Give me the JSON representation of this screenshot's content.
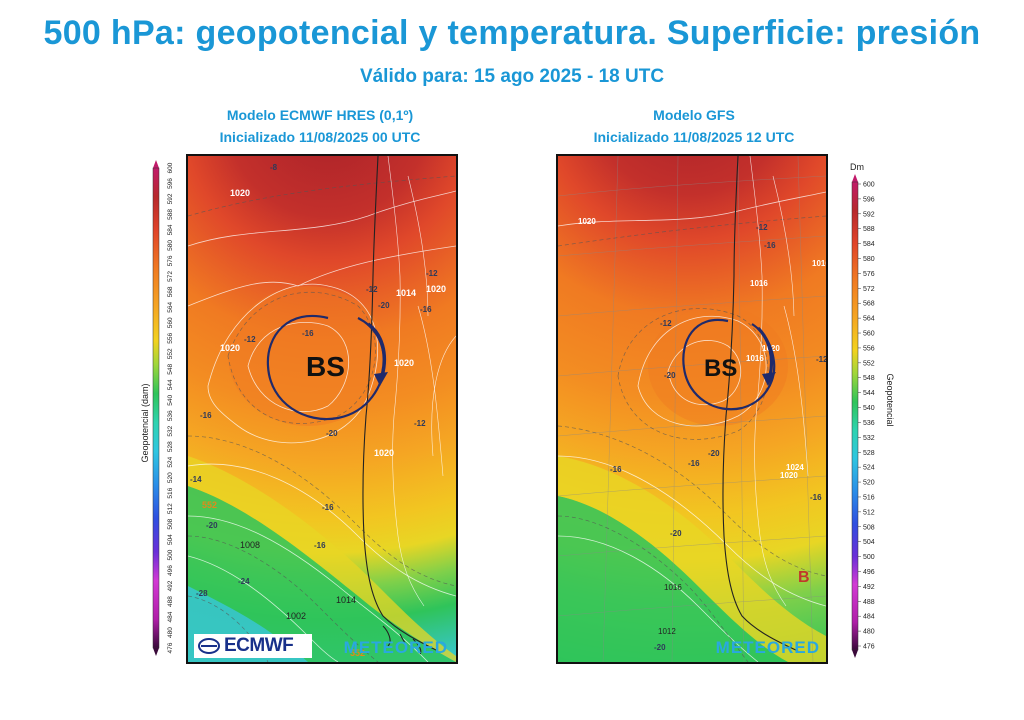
{
  "title": "500 hPa: geopotencial y temperatura. Superficie: presión",
  "subtitle": "Válido para: 15 ago 2025 - 18 UTC",
  "left_panel": {
    "model_line1": "Modelo ECMWF HRES (0,1º)",
    "model_line2": "Inicializado 11/08/2025 00 UTC",
    "bs_label": "BS",
    "logo_ecmwf": "ECMWF",
    "logo_meteored": "METEORED",
    "pressure_labels": [
      "1020",
      "1020",
      "1014",
      "1020",
      "1020",
      "1020",
      "1008",
      "1014",
      "1002"
    ],
    "temp_labels": [
      "-8",
      "-12",
      "-12",
      "-16",
      "-20",
      "-12",
      "-16",
      "-20",
      "-16",
      "-16",
      "-20",
      "-24",
      "-28",
      "-12",
      "-16",
      "-14"
    ],
    "height_labels": [
      "552",
      "552"
    ]
  },
  "right_panel": {
    "model_line1": "Modelo GFS",
    "model_line2": "Inicializado 11/08/2025 12 UTC",
    "bs_label": "BS",
    "b_label": "B",
    "logo_meteored": "METEORED",
    "pressure_labels": [
      "1020",
      "1020",
      "1016",
      "1016",
      "1020",
      "1024",
      "1016",
      "1012",
      "1016"
    ],
    "temp_labels": [
      "-12",
      "-12",
      "-16",
      "-12",
      "-20",
      "-16",
      "-16",
      "-20",
      "-20",
      "-20",
      "-16"
    ]
  },
  "left_colorbar": {
    "label": "Geopotencial (dam)",
    "ticks": [
      "476",
      "480",
      "484",
      "488",
      "492",
      "496",
      "500",
      "504",
      "508",
      "512",
      "516",
      "520",
      "524",
      "528",
      "532",
      "536",
      "540",
      "544",
      "548",
      "552",
      "556",
      "560",
      "564",
      "568",
      "572",
      "576",
      "580",
      "584",
      "588",
      "592",
      "596",
      "600"
    ]
  },
  "right_colorbar": {
    "unit": "Dm",
    "label": "Geopotencial",
    "ticks": [
      "600",
      "596",
      "592",
      "588",
      "584",
      "580",
      "576",
      "572",
      "568",
      "564",
      "560",
      "556",
      "552",
      "548",
      "544",
      "540",
      "536",
      "532",
      "528",
      "524",
      "520",
      "516",
      "512",
      "508",
      "504",
      "500",
      "496",
      "492",
      "488",
      "484",
      "480",
      "476"
    ]
  },
  "colors": {
    "title": "#1a97d6",
    "arrow": "#1f2a6b",
    "dark_red": "#b7292c",
    "red_orange": "#e0442a",
    "orange": "#f07a22",
    "light_orange": "#f5a623",
    "yellow": "#f2d21f",
    "green": "#2fc45a",
    "cyan": "#39c6d9"
  }
}
